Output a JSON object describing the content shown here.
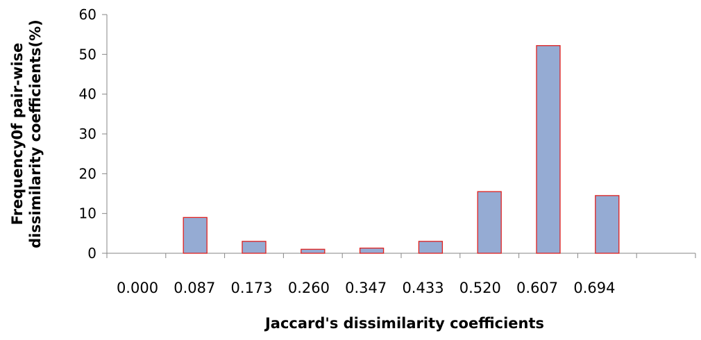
{
  "chart_data": {
    "type": "bar",
    "title": "",
    "xlabel": "Jaccard's dissimilarity coefficients",
    "ylabel_lines": [
      "Frequency0f pair-wise",
      "dissimilarity coefficients(%)"
    ],
    "categories": [
      "0.000",
      "0.087",
      "0.173",
      "0.260",
      "0.347",
      "0.433",
      "0.520",
      "0.607",
      "0.694"
    ],
    "values": [
      0,
      9,
      3,
      1,
      1.3,
      3,
      15.5,
      52.2,
      14.5
    ],
    "ylim": [
      0,
      60
    ],
    "yticks": [
      0,
      10,
      20,
      30,
      40,
      50,
      60
    ],
    "grid": false,
    "legend": "none",
    "bar_fill": "#95abd3",
    "bar_stroke": "#e0201e"
  }
}
